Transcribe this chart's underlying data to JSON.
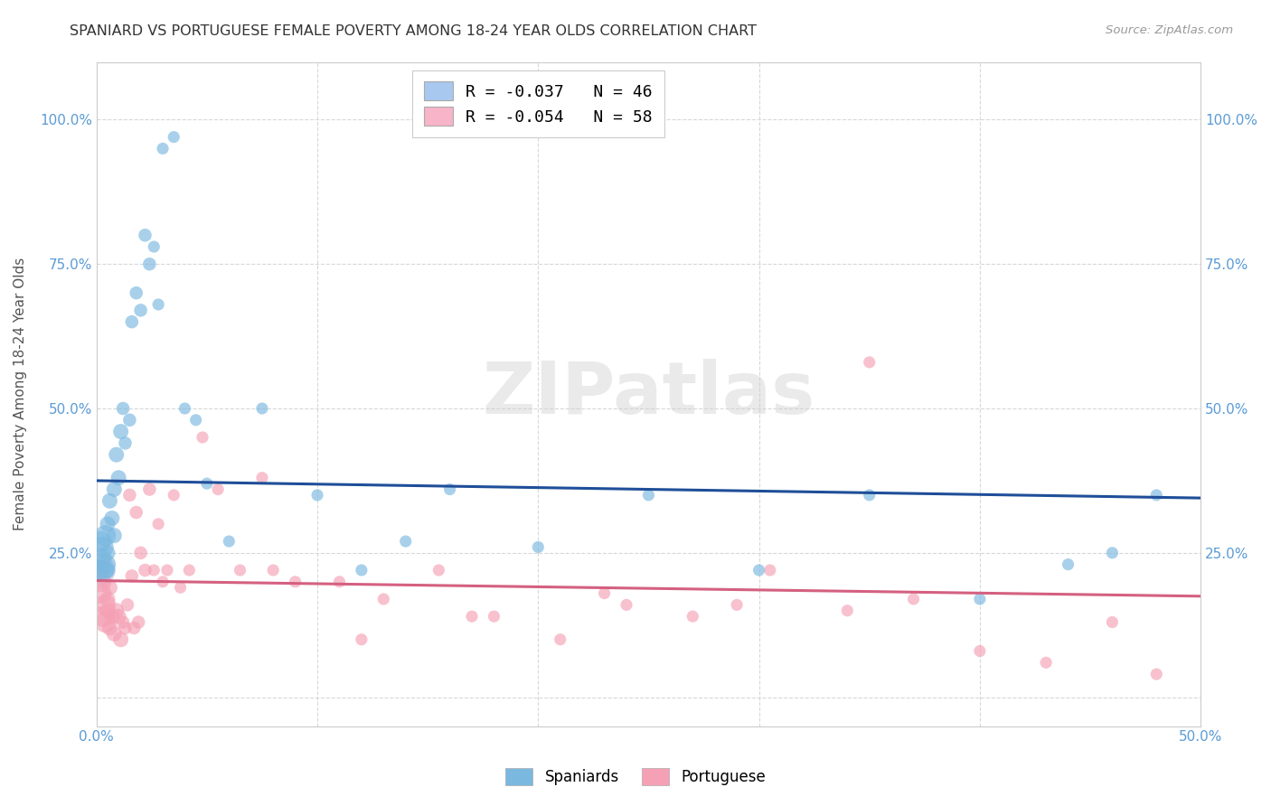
{
  "title": "SPANIARD VS PORTUGUESE FEMALE POVERTY AMONG 18-24 YEAR OLDS CORRELATION CHART",
  "source": "Source: ZipAtlas.com",
  "ylabel": "Female Poverty Among 18-24 Year Olds",
  "xlim": [
    0.0,
    0.5
  ],
  "ylim": [
    -0.05,
    1.1
  ],
  "xticks": [
    0.0,
    0.1,
    0.2,
    0.3,
    0.4,
    0.5
  ],
  "yticks": [
    0.0,
    0.25,
    0.5,
    0.75,
    1.0
  ],
  "ytick_labels_left": [
    "",
    "25.0%",
    "50.0%",
    "75.0%",
    "100.0%"
  ],
  "ytick_labels_right": [
    "",
    "25.0%",
    "50.0%",
    "75.0%",
    "100.0%"
  ],
  "xtick_labels": [
    "0.0%",
    "",
    "",
    "",
    "",
    "50.0%"
  ],
  "legend_items": [
    {
      "label": "R = -0.037   N = 46",
      "color": "#a8c8f0"
    },
    {
      "label": "R = -0.054   N = 58",
      "color": "#f8b4c8"
    }
  ],
  "spaniards_color": "#7ab8e0",
  "portuguese_color": "#f5a0b5",
  "trend_spaniards_color": "#1f4e99",
  "trend_portuguese_color": "#d46080",
  "watermark": "ZIPatlas",
  "spaniards_x": [
    0.001,
    0.002,
    0.002,
    0.003,
    0.003,
    0.004,
    0.004,
    0.005,
    0.005,
    0.005,
    0.006,
    0.007,
    0.008,
    0.008,
    0.009,
    0.01,
    0.011,
    0.012,
    0.013,
    0.015,
    0.016,
    0.018,
    0.02,
    0.022,
    0.024,
    0.026,
    0.028,
    0.03,
    0.035,
    0.04,
    0.045,
    0.05,
    0.06,
    0.075,
    0.1,
    0.12,
    0.14,
    0.16,
    0.2,
    0.25,
    0.3,
    0.35,
    0.4,
    0.44,
    0.46,
    0.48
  ],
  "spaniards_y": [
    0.22,
    0.24,
    0.27,
    0.22,
    0.26,
    0.23,
    0.28,
    0.22,
    0.25,
    0.3,
    0.34,
    0.31,
    0.36,
    0.28,
    0.42,
    0.38,
    0.46,
    0.5,
    0.44,
    0.48,
    0.65,
    0.7,
    0.67,
    0.8,
    0.75,
    0.78,
    0.68,
    0.95,
    0.97,
    0.5,
    0.48,
    0.37,
    0.27,
    0.5,
    0.35,
    0.22,
    0.27,
    0.36,
    0.26,
    0.35,
    0.22,
    0.35,
    0.17,
    0.23,
    0.25,
    0.35
  ],
  "portuguese_x": [
    0.001,
    0.002,
    0.002,
    0.003,
    0.004,
    0.004,
    0.005,
    0.005,
    0.006,
    0.006,
    0.007,
    0.008,
    0.009,
    0.01,
    0.011,
    0.012,
    0.013,
    0.014,
    0.015,
    0.016,
    0.017,
    0.018,
    0.019,
    0.02,
    0.022,
    0.024,
    0.026,
    0.028,
    0.03,
    0.032,
    0.035,
    0.038,
    0.042,
    0.048,
    0.055,
    0.065,
    0.075,
    0.09,
    0.11,
    0.13,
    0.155,
    0.18,
    0.21,
    0.24,
    0.27,
    0.305,
    0.34,
    0.37,
    0.4,
    0.43,
    0.46,
    0.48,
    0.35,
    0.29,
    0.23,
    0.17,
    0.12,
    0.08
  ],
  "portuguese_y": [
    0.22,
    0.2,
    0.18,
    0.14,
    0.16,
    0.13,
    0.17,
    0.15,
    0.12,
    0.19,
    0.14,
    0.11,
    0.15,
    0.14,
    0.1,
    0.13,
    0.12,
    0.16,
    0.35,
    0.21,
    0.12,
    0.32,
    0.13,
    0.25,
    0.22,
    0.36,
    0.22,
    0.3,
    0.2,
    0.22,
    0.35,
    0.19,
    0.22,
    0.45,
    0.36,
    0.22,
    0.38,
    0.2,
    0.2,
    0.17,
    0.22,
    0.14,
    0.1,
    0.16,
    0.14,
    0.22,
    0.15,
    0.17,
    0.08,
    0.06,
    0.13,
    0.04,
    0.58,
    0.16,
    0.18,
    0.14,
    0.1,
    0.22
  ],
  "background_color": "#ffffff",
  "grid_color": "#d8d8d8",
  "axis_label_color": "#5b9bd5",
  "title_color": "#333333",
  "trend_spaniards_x0": 0.0,
  "trend_spaniards_x1": 0.5,
  "trend_spaniards_y0": 0.375,
  "trend_spaniards_y1": 0.345,
  "trend_portuguese_x0": 0.0,
  "trend_portuguese_x1": 0.5,
  "trend_portuguese_y0": 0.202,
  "trend_portuguese_y1": 0.175
}
